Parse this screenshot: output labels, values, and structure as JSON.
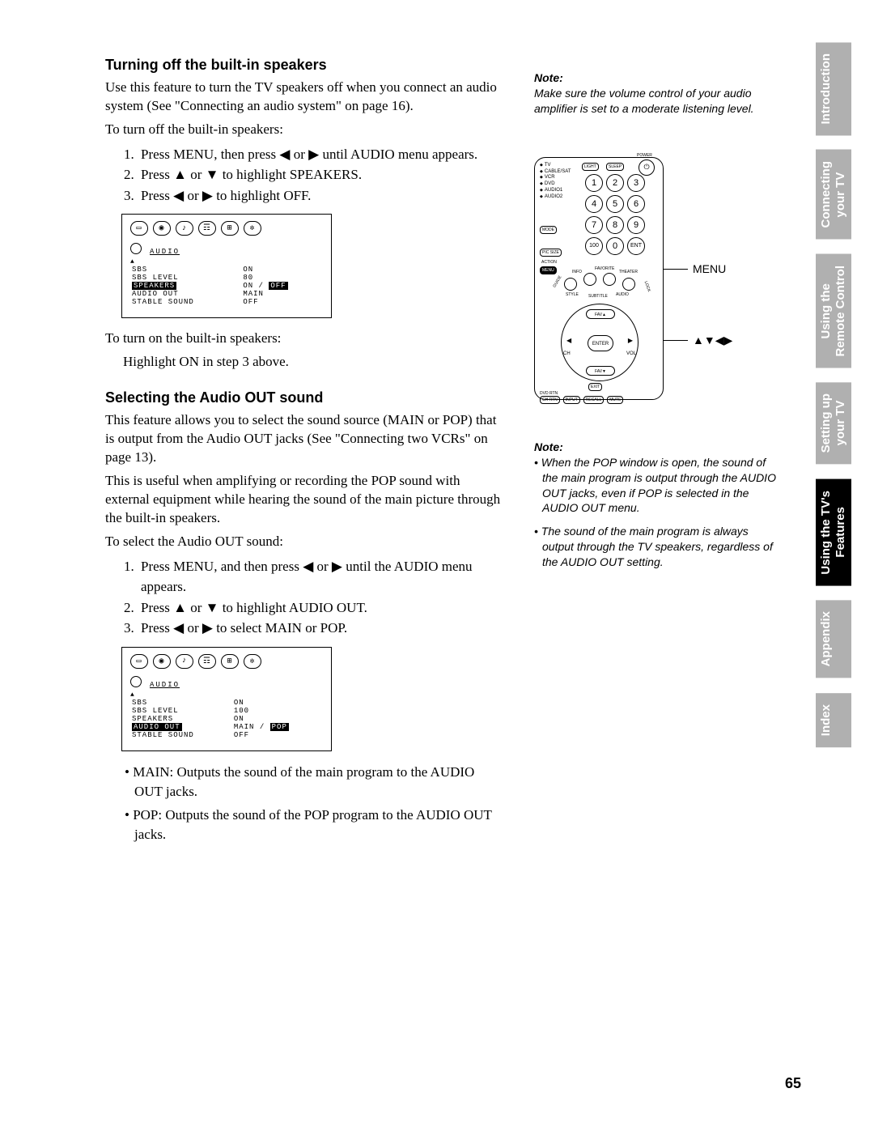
{
  "section1": {
    "heading": "Turning off the built-in speakers",
    "intro": "Use this feature to turn the TV speakers off when you connect an audio system (See \"Connecting an audio system\" on page 16).",
    "lead": "To turn off the built-in speakers:",
    "step1": "Press MENU, then press ◀ or ▶ until AUDIO menu appears.",
    "step2": "Press ▲ or ▼ to highlight SPEAKERS.",
    "step3": "Press ◀ or ▶ to highlight OFF.",
    "after1": "To turn on the built-in speakers:",
    "after2": "Highlight ON in step 3 above."
  },
  "section2": {
    "heading": "Selecting the Audio OUT sound",
    "p1": "This feature allows you to select the sound source (MAIN or POP) that is output from the Audio OUT jacks (See \"Connecting two VCRs\" on page 13).",
    "p2": "This is useful when amplifying or recording the POP sound with external equipment while hearing the sound of the main picture through the built-in speakers.",
    "lead": "To select the Audio OUT sound:",
    "step1": "Press MENU, and then press ◀ or ▶ until the AUDIO menu appears.",
    "step2": "Press ▲ or ▼ to highlight AUDIO OUT.",
    "step3": "Press ◀ or ▶ to select MAIN or POP.",
    "bul1": "MAIN: Outputs the sound of the main program to the AUDIO OUT jacks.",
    "bul2": "POP: Outputs the sound of the POP program to the AUDIO OUT jacks."
  },
  "osd1": {
    "title": "AUDIO",
    "rows": [
      [
        "SBS",
        "ON"
      ],
      [
        "SBS LEVEL",
        "80"
      ],
      [
        "SPEAKERS",
        "ON / OFF"
      ],
      [
        "AUDIO OUT",
        "MAIN"
      ],
      [
        "STABLE SOUND",
        "OFF"
      ]
    ],
    "highlight_row": 2,
    "highlight_value": "OFF"
  },
  "osd2": {
    "title": "AUDIO",
    "rows": [
      [
        "SBS",
        "ON"
      ],
      [
        "SBS LEVEL",
        "100"
      ],
      [
        "SPEAKERS",
        "ON"
      ],
      [
        "AUDIO OUT",
        "MAIN / POP"
      ],
      [
        "STABLE SOUND",
        "OFF"
      ]
    ],
    "highlight_row": 3,
    "highlight_value": "POP"
  },
  "note1": {
    "head": "Note:",
    "body": "Make sure the volume control of your audio amplifier is set to a moderate listening level."
  },
  "note2": {
    "head": "Note:",
    "b1": "When the POP window is open, the sound of the main program is output through the AUDIO OUT jacks, even if POP is selected in the AUDIO OUT menu.",
    "b2": "The sound of the main program is always output through the TV speakers, regardless of the AUDIO OUT setting."
  },
  "remote": {
    "device_labels": [
      "TV",
      "CABLE/SAT",
      "VCR",
      "DVD",
      "AUDIO1",
      "AUDIO2"
    ],
    "top_buttons": [
      "LIGHT",
      "SLEEP"
    ],
    "mode_button": "MODE",
    "numpad": [
      "1",
      "2",
      "3",
      "4",
      "5",
      "6",
      "7",
      "8",
      "9",
      "100",
      "0",
      "ENT"
    ],
    "pic_size": "PIC SIZE",
    "action": "ACTION",
    "menu": "MENU",
    "arc_labels": [
      "GUIDE",
      "INFO",
      "FAVORITE",
      "THEATER",
      "LOCK",
      "STYLE",
      "SUBTITLE",
      "AUDIO"
    ],
    "fav_up": "FAV▲",
    "fav_down": "FAV▼",
    "enter": "ENTER",
    "ch": "CH",
    "vol": "VOL",
    "exit": "EXIT",
    "bottom_row": [
      "DVD RTN",
      "CH RTN",
      "INPUT",
      "RECALL",
      "MUTE"
    ],
    "bottom_labels": [
      "SLOW/DIR",
      "DVD CLEAR",
      "POP/SEARCH"
    ],
    "callout_menu": "MENU",
    "callout_arrows": "▲▼◀▶",
    "power": "POWER"
  },
  "tabs": [
    {
      "label": "Introduction",
      "active": false
    },
    {
      "label": "Connecting\nyour TV",
      "active": false
    },
    {
      "label": "Using the\nRemote Control",
      "active": false
    },
    {
      "label": "Setting up\nyour TV",
      "active": false
    },
    {
      "label": "Using the TV's\nFeatures",
      "active": true
    },
    {
      "label": "Appendix",
      "active": false
    },
    {
      "label": "Index",
      "active": false
    }
  ],
  "page_number": "65"
}
